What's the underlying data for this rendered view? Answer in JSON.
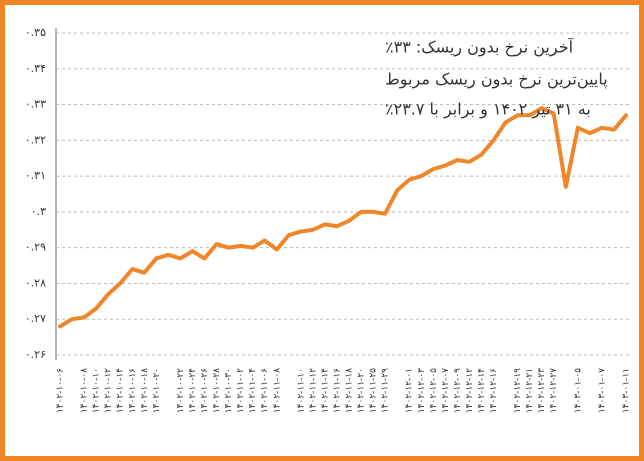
{
  "chart_data": {
    "type": "line",
    "annotations": [
      "آخرین نرخ بدون ریسک: ۳۳٪",
      "پایین‌ترین نرخ بدون ریسک مربوط",
      "به ۳۱ تیر ۱۴۰۲ و برابر با ۲۳.۷٪"
    ],
    "categories": [
      "۱۴۰۲-۱۰-۰۶",
      null,
      "۱۴۰۲-۱۰-۰۸",
      "۱۴۰۲-۱۰-۱۰",
      "۱۴۰۲-۱۰-۱۲",
      "۱۴۰۲-۱۰-۱۴",
      "۱۴۰۲-۱۰-۱۶",
      "۱۴۰۲-۱۰-۱۸",
      "۱۴۰۲-۱۰-۲۰",
      null,
      "۱۴۰۲-۱۰-۲۲",
      "۱۴۰۲-۱۰-۲۴",
      "۱۴۰۲-۱۰-۲۶",
      "۱۴۰۲-۱۰-۲۸",
      "۱۴۰۲-۱۰-۳۰",
      "۱۴۰۲-۱۱-۰۲",
      "۱۴۰۲-۱۱-۰۴",
      "۱۴۰۲-۱۱-۰۶",
      "۱۴۰۲-۱۱-۰۸",
      null,
      "۱۴۰۲-۱۱-۱۰",
      "۱۴۰۲-۱۱-۱۲",
      "۱۴۰۲-۱۱-۱۴",
      "۱۴۰۲-۱۱-۱۶",
      "۱۴۰۲-۱۱-۱۸",
      "۱۴۰۲-۱۱-۲۰",
      "۱۴۰۲-۱۱-۲۵",
      "۱۴۰۲-۱۱-۲۹",
      null,
      "۱۴۰۲-۱۲-۰۱",
      "۱۴۰۲-۱۲-۰۳",
      "۱۴۰۲-۱۲-۰۵",
      "۱۴۰۲-۱۲-۰۷",
      "۱۴۰۲-۱۲-۰۹",
      "۱۴۰۲-۱۲-۱۲",
      "۱۴۰۲-۱۲-۱۴",
      "۱۴۰۲-۱۲-۱۶",
      null,
      "۱۴۰۲-۱۲-۱۹",
      "۱۴۰۲-۱۲-۲۱",
      "۱۴۰۲-۱۲-۲۳",
      "۱۴۰۲-۱۲-۲۷",
      null,
      "۱۴۰۳-۰۱-۰۵",
      null,
      "۱۴۰۳-۰۱-۰۷",
      null,
      "۱۴۰۳-۰۱-۱۱"
    ],
    "values": [
      0.268,
      0.27,
      0.2705,
      0.273,
      0.277,
      0.28,
      0.284,
      0.283,
      0.287,
      0.288,
      0.287,
      0.289,
      0.287,
      0.291,
      0.29,
      0.2905,
      0.29,
      0.292,
      0.2895,
      0.2935,
      0.2945,
      0.295,
      0.2965,
      0.296,
      0.2975,
      0.3,
      0.3,
      0.2995,
      0.306,
      0.309,
      0.31,
      0.312,
      0.313,
      0.3145,
      0.314,
      0.316,
      0.32,
      0.325,
      0.327,
      0.327,
      0.329,
      0.3275,
      0.307,
      0.3235,
      0.322,
      0.3235,
      0.323,
      0.327
    ],
    "color": "#f0862a",
    "ylim": [
      0.26,
      0.35
    ],
    "yticks": [
      {
        "value": 0.26,
        "label": "۰.۲۶"
      },
      {
        "value": 0.27,
        "label": "۰.۲۷"
      },
      {
        "value": 0.28,
        "label": "۰.۲۸"
      },
      {
        "value": 0.29,
        "label": "۰.۲۹"
      },
      {
        "value": 0.3,
        "label": "۰.۳"
      },
      {
        "value": 0.31,
        "label": "۰.۳۱"
      },
      {
        "value": 0.32,
        "label": "۰.۳۲"
      },
      {
        "value": 0.33,
        "label": "۰.۳۳"
      },
      {
        "value": 0.34,
        "label": "۰.۳۴"
      },
      {
        "value": 0.35,
        "label": "۰.۳۵"
      }
    ],
    "grid": true
  }
}
